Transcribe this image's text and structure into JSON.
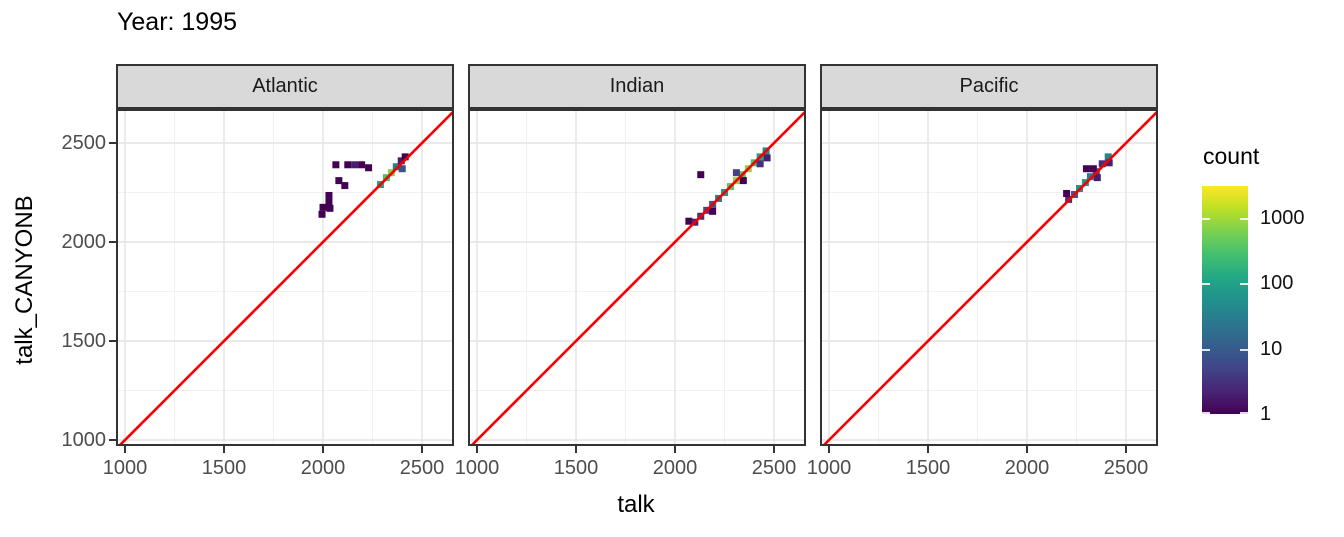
{
  "chart_data": {
    "type": "heatmap",
    "title": "Year: 1995",
    "xlabel": "talk",
    "ylabel": "talk_CANYONB",
    "x_ticks": [
      1000,
      1500,
      2000,
      2500
    ],
    "y_ticks": [
      2500,
      2000,
      1500,
      1000
    ],
    "x_minor": [
      1250,
      1750,
      2250
    ],
    "y_minor": [
      1250,
      1750,
      2250
    ],
    "xlim": [
      954.5,
      2661.5
    ],
    "ylim": [
      969.7,
      2671.7
    ],
    "grid": "on",
    "legend_position": "right",
    "identity_line": {
      "slope": 1,
      "intercept": 0,
      "color": "#F40000"
    },
    "legend": {
      "title": "count",
      "ticks": [
        1000,
        100,
        10,
        1
      ],
      "domain": [
        1,
        3100
      ]
    },
    "colors": {
      "viridis": [
        "#440154",
        "#482475",
        "#414487",
        "#355F8D",
        "#2A788E",
        "#21918C",
        "#22A884",
        "#44BF70",
        "#7AD151",
        "#BDDF26",
        "#FDE725"
      ],
      "strip_bg": "#D9D9D9",
      "panel_border": "#333333",
      "grid_major": "#E3E3E3",
      "grid_minor": "#F1F1F1",
      "tick_label": "#4D4D4D",
      "identity_line": "#F40000"
    },
    "facets": [
      {
        "name": "Atlantic",
        "tiles": [
          [
            2065,
            2390,
            1
          ],
          [
            2125,
            2390,
            1
          ],
          [
            2160,
            2390,
            2
          ],
          [
            2195,
            2390,
            1
          ],
          [
            2230,
            2375,
            1
          ],
          [
            2080,
            2310,
            1
          ],
          [
            2110,
            2285,
            1
          ],
          [
            2030,
            2235,
            1
          ],
          [
            2030,
            2200,
            1
          ],
          [
            2000,
            2175,
            1
          ],
          [
            2035,
            2170,
            1
          ],
          [
            1995,
            2140,
            1
          ],
          [
            2290,
            2290,
            100
          ],
          [
            2320,
            2325,
            300
          ],
          [
            2345,
            2350,
            700
          ],
          [
            2370,
            2380,
            30
          ],
          [
            2395,
            2410,
            2
          ],
          [
            2415,
            2430,
            1
          ],
          [
            2400,
            2370,
            8
          ]
        ]
      },
      {
        "name": "Indian",
        "tiles": [
          [
            2070,
            2105,
            1
          ],
          [
            2100,
            2100,
            2
          ],
          [
            2130,
            2130,
            3
          ],
          [
            2160,
            2160,
            5
          ],
          [
            2190,
            2190,
            10
          ],
          [
            2220,
            2220,
            30
          ],
          [
            2250,
            2250,
            80
          ],
          [
            2280,
            2280,
            400
          ],
          [
            2310,
            2310,
            900
          ],
          [
            2340,
            2340,
            400
          ],
          [
            2370,
            2370,
            800
          ],
          [
            2400,
            2400,
            300
          ],
          [
            2430,
            2430,
            100
          ],
          [
            2460,
            2460,
            40
          ],
          [
            2130,
            2340,
            1
          ],
          [
            2190,
            2155,
            1
          ],
          [
            2345,
            2310,
            1
          ],
          [
            2310,
            2350,
            5
          ],
          [
            2430,
            2395,
            3
          ],
          [
            2465,
            2425,
            2
          ]
        ]
      },
      {
        "name": "Pacific",
        "tiles": [
          [
            2210,
            2215,
            3
          ],
          [
            2240,
            2240,
            10
          ],
          [
            2265,
            2270,
            60
          ],
          [
            2295,
            2300,
            80
          ],
          [
            2320,
            2330,
            30
          ],
          [
            2350,
            2355,
            8
          ],
          [
            2380,
            2395,
            3
          ],
          [
            2410,
            2430,
            40
          ],
          [
            2300,
            2370,
            1
          ],
          [
            2335,
            2370,
            1
          ],
          [
            2355,
            2325,
            2
          ],
          [
            2415,
            2400,
            2
          ],
          [
            2200,
            2245,
            1
          ]
        ]
      }
    ]
  }
}
